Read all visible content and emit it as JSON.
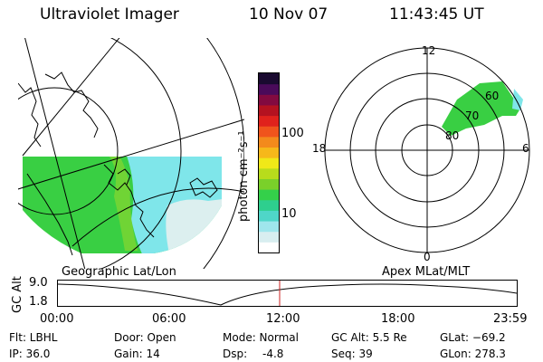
{
  "header": {
    "title": "Ultraviolet Imager",
    "date": "10 Nov 07",
    "time": "11:43:45 UT"
  },
  "colorbar": {
    "label": "photon cm⁻²s⁻¹",
    "ticks": [
      "100",
      "10"
    ],
    "scale": "log",
    "colors": [
      "#ffffff",
      "#d8eef0",
      "#9fe6ec",
      "#4fd6c8",
      "#2ecf8e",
      "#34d04a",
      "#7ad02a",
      "#b8dc1c",
      "#f0e818",
      "#f6b81a",
      "#f38a1c",
      "#f0541c",
      "#e0221c",
      "#b41220",
      "#820a40",
      "#4a0a5a",
      "#1a0a30"
    ]
  },
  "left_map": {
    "label": "Geographic Lat/Lon",
    "colors": {
      "green": "#39cf43",
      "cyan": "#7fe6ea",
      "pale": "#dcefef",
      "lines": "#000000"
    }
  },
  "right_polar": {
    "label": "Apex MLat/MLT",
    "mlt_labels": {
      "top": "12",
      "left": "18",
      "right": "6",
      "bottom": "0"
    },
    "lat_labels": [
      "60",
      "70",
      "80"
    ]
  },
  "timeline": {
    "ylabel": "GC Alt",
    "yticks": [
      "9.0",
      "1.8"
    ],
    "xticks": [
      "00:00",
      "06:00",
      "12:00",
      "18:00",
      "23:59"
    ],
    "current_time_marker_color": "#cc2222"
  },
  "status": {
    "flt": "Flt: LBHL",
    "ip": "IP: 36.0",
    "door": "Door: Open",
    "gain": "Gain: 14",
    "mode": "Mode: Normal",
    "dsp_label": "Dsp:",
    "dsp_value": "-4.8",
    "gc_alt": "GC Alt: 5.5 Re",
    "seq": "Seq: 39",
    "glat": "GLat: −69.2",
    "glon": "GLon: 278.3"
  }
}
